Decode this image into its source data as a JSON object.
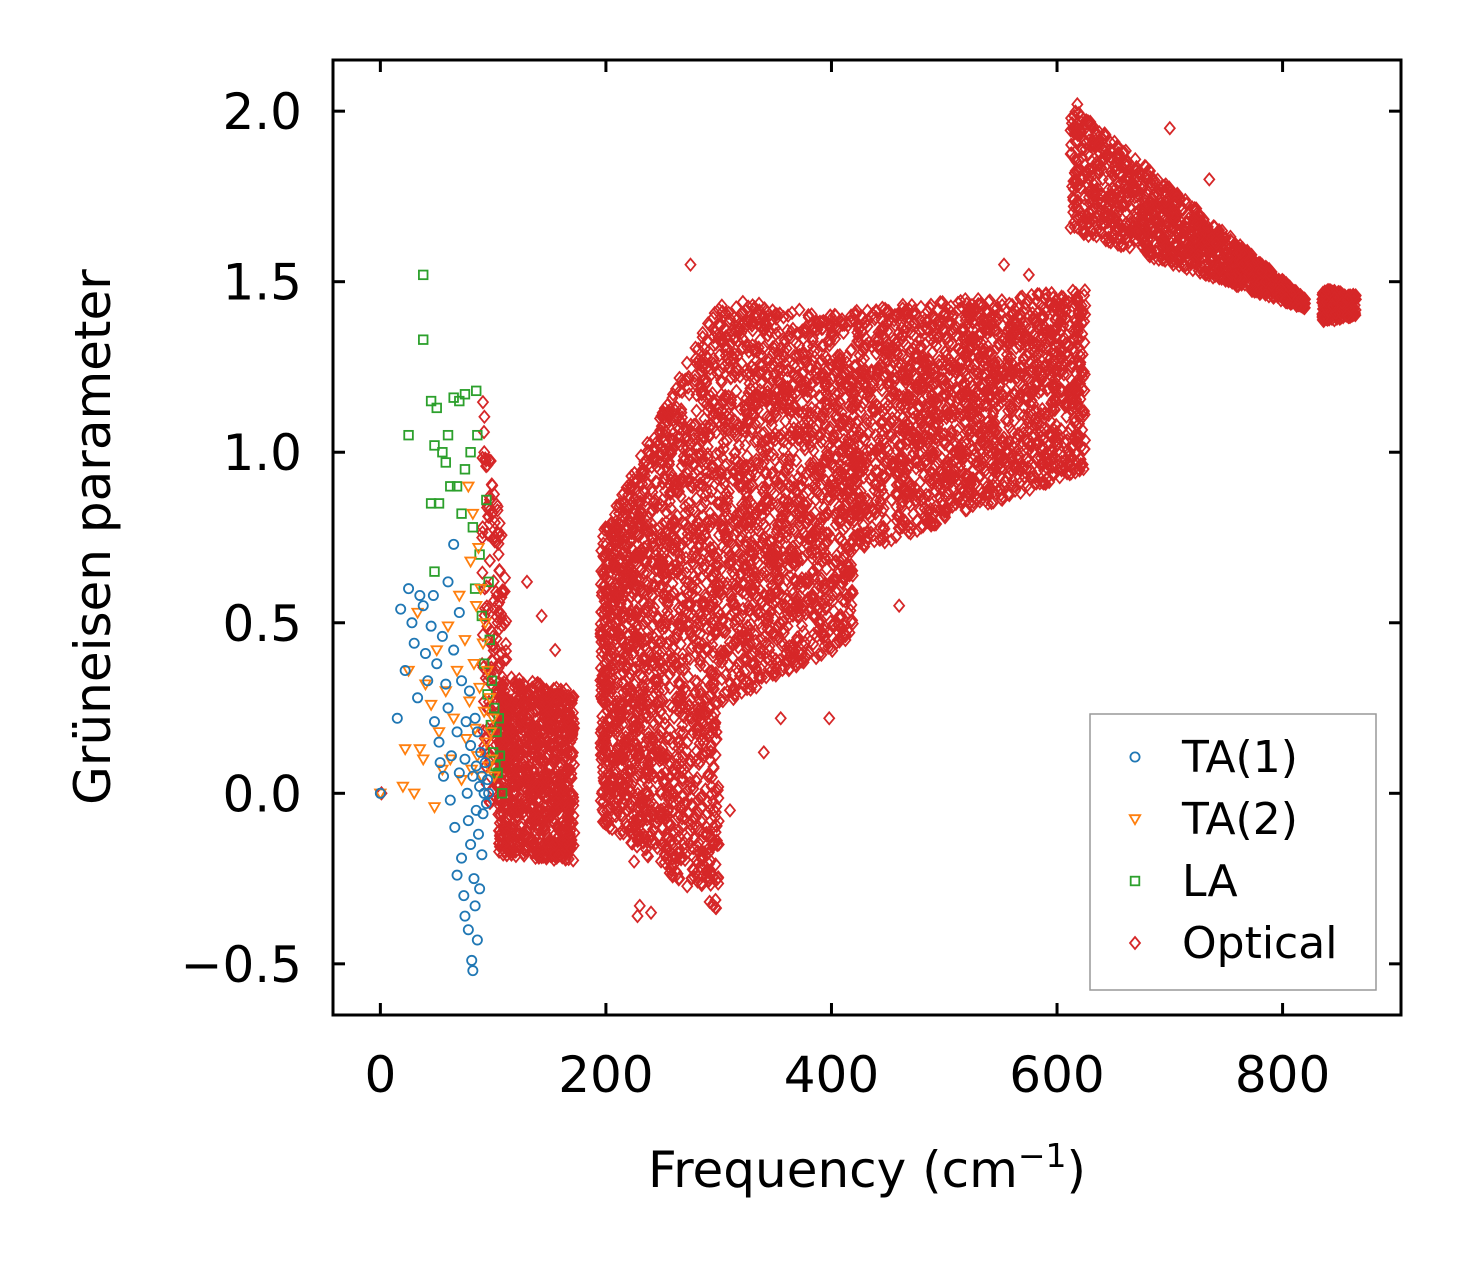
{
  "chart_data": {
    "type": "scatter",
    "title": "",
    "xlabel": "Frequency (cm",
    "xlabel_superscript": "−1",
    "xlabel_suffix": ")",
    "ylabel": "Grüneisen parameter",
    "xlim": [
      -42,
      905
    ],
    "ylim": [
      -0.65,
      2.15
    ],
    "xticks": [
      0,
      200,
      400,
      600,
      800
    ],
    "xtick_labels": [
      "0",
      "200",
      "400",
      "600",
      "800"
    ],
    "yticks": [
      -0.5,
      0.0,
      0.5,
      1.0,
      1.5,
      2.0
    ],
    "ytick_labels": [
      "−0.5",
      "0.0",
      "0.5",
      "1.0",
      "1.5",
      "2.0"
    ],
    "grid": false,
    "legend_position": "lower-right",
    "series": [
      {
        "name": "TA(1)",
        "marker": "circle",
        "color": "#1f77b4",
        "points": [
          [
            0,
            0.0
          ],
          [
            15,
            0.22
          ],
          [
            18,
            0.54
          ],
          [
            22,
            0.36
          ],
          [
            25,
            0.6
          ],
          [
            28,
            0.5
          ],
          [
            30,
            0.44
          ],
          [
            33,
            0.28
          ],
          [
            35,
            0.58
          ],
          [
            38,
            0.55
          ],
          [
            40,
            0.41
          ],
          [
            42,
            0.33
          ],
          [
            45,
            0.49
          ],
          [
            47,
            0.58
          ],
          [
            48,
            0.21
          ],
          [
            50,
            0.38
          ],
          [
            52,
            0.15
          ],
          [
            53,
            0.09
          ],
          [
            55,
            0.46
          ],
          [
            56,
            0.05
          ],
          [
            58,
            0.32
          ],
          [
            60,
            0.62
          ],
          [
            60,
            0.25
          ],
          [
            62,
            -0.02
          ],
          [
            63,
            0.11
          ],
          [
            65,
            0.73
          ],
          [
            65,
            0.42
          ],
          [
            66,
            -0.1
          ],
          [
            68,
            0.18
          ],
          [
            68,
            -0.24
          ],
          [
            70,
            0.06
          ],
          [
            70,
            0.53
          ],
          [
            72,
            -0.19
          ],
          [
            72,
            0.33
          ],
          [
            74,
            -0.3
          ],
          [
            75,
            0.1
          ],
          [
            75,
            -0.36
          ],
          [
            76,
            0.21
          ],
          [
            77,
            0.0
          ],
          [
            78,
            -0.08
          ],
          [
            78,
            -0.4
          ],
          [
            79,
            0.3
          ],
          [
            80,
            -0.15
          ],
          [
            80,
            0.14
          ],
          [
            81,
            -0.49
          ],
          [
            82,
            -0.52
          ],
          [
            82,
            0.05
          ],
          [
            83,
            -0.25
          ],
          [
            84,
            0.22
          ],
          [
            84,
            -0.33
          ],
          [
            85,
            -0.05
          ],
          [
            85,
            0.08
          ],
          [
            86,
            -0.43
          ],
          [
            86,
            0.18
          ],
          [
            87,
            -0.12
          ],
          [
            88,
            0.02
          ],
          [
            88,
            -0.28
          ],
          [
            89,
            0.12
          ],
          [
            90,
            -0.18
          ],
          [
            90,
            0.05
          ],
          [
            91,
            -0.06
          ],
          [
            92,
            0.0
          ],
          [
            93,
            0.09
          ],
          [
            94,
            -0.03
          ],
          [
            95,
            0.04
          ],
          [
            96,
            0.0
          ]
        ]
      },
      {
        "name": "TA(2)",
        "marker": "triangle-down",
        "color": "#ff7f0e",
        "points": [
          [
            0,
            0.0
          ],
          [
            20,
            0.02
          ],
          [
            22,
            0.13
          ],
          [
            25,
            0.36
          ],
          [
            30,
            0.0
          ],
          [
            33,
            0.53
          ],
          [
            35,
            0.13
          ],
          [
            38,
            0.1
          ],
          [
            40,
            0.32
          ],
          [
            45,
            0.26
          ],
          [
            48,
            -0.04
          ],
          [
            50,
            0.42
          ],
          [
            52,
            0.18
          ],
          [
            55,
            0.07
          ],
          [
            58,
            0.3
          ],
          [
            60,
            0.49
          ],
          [
            62,
            0.1
          ],
          [
            65,
            0.22
          ],
          [
            68,
            0.36
          ],
          [
            70,
            0.58
          ],
          [
            72,
            0.04
          ],
          [
            75,
            0.45
          ],
          [
            76,
            0.16
          ],
          [
            78,
            0.9
          ],
          [
            79,
            0.27
          ],
          [
            80,
            0.68
          ],
          [
            81,
            0.07
          ],
          [
            82,
            0.82
          ],
          [
            83,
            0.38
          ],
          [
            84,
            0.19
          ],
          [
            85,
            0.55
          ],
          [
            86,
            0.11
          ],
          [
            87,
            0.72
          ],
          [
            88,
            0.31
          ],
          [
            89,
            0.6
          ],
          [
            90,
            0.05
          ],
          [
            91,
            0.44
          ],
          [
            92,
            0.24
          ],
          [
            93,
            0.5
          ],
          [
            94,
            0.15
          ],
          [
            95,
            0.36
          ],
          [
            96,
            0.08
          ],
          [
            97,
            0.28
          ],
          [
            98,
            0.18
          ],
          [
            99,
            0.1
          ],
          [
            100,
            0.22
          ],
          [
            101,
            0.05
          ]
        ]
      },
      {
        "name": "LA",
        "marker": "square",
        "color": "#2ca02c",
        "points": [
          [
            38,
            1.52
          ],
          [
            38,
            1.33
          ],
          [
            25,
            1.05
          ],
          [
            45,
            1.15
          ],
          [
            50,
            1.13
          ],
          [
            48,
            1.02
          ],
          [
            55,
            1.0
          ],
          [
            60,
            1.05
          ],
          [
            65,
            1.16
          ],
          [
            70,
            1.15
          ],
          [
            75,
            1.17
          ],
          [
            85,
            1.18
          ],
          [
            45,
            0.85
          ],
          [
            52,
            0.85
          ],
          [
            58,
            0.97
          ],
          [
            62,
            0.9
          ],
          [
            48,
            0.65
          ],
          [
            68,
            0.9
          ],
          [
            72,
            0.82
          ],
          [
            75,
            0.95
          ],
          [
            80,
            1.0
          ],
          [
            82,
            0.78
          ],
          [
            84,
            0.6
          ],
          [
            86,
            1.05
          ],
          [
            88,
            0.7
          ],
          [
            90,
            0.52
          ],
          [
            92,
            0.38
          ],
          [
            94,
            0.86
          ],
          [
            95,
            0.29
          ],
          [
            96,
            0.62
          ],
          [
            97,
            0.45
          ],
          [
            98,
            0.2
          ],
          [
            99,
            0.33
          ],
          [
            100,
            0.12
          ],
          [
            101,
            0.25
          ],
          [
            102,
            0.08
          ],
          [
            103,
            0.18
          ],
          [
            104,
            0.06
          ],
          [
            105,
            0.22
          ],
          [
            108,
            0.0
          ],
          [
            106,
            0.11
          ]
        ]
      },
      {
        "name": "Optical",
        "marker": "diamond",
        "color": "#d62728",
        "clusters": [
          {
            "x": [
              90,
              112
            ],
            "y_low": [
              0.0,
              -0.1
            ],
            "y_high": [
              1.18,
              0.65
            ],
            "n": 180
          },
          {
            "x": [
              105,
              172
            ],
            "y_low": [
              -0.18,
              -0.2
            ],
            "y_high": [
              0.35,
              0.3
            ],
            "n": 900
          },
          {
            "x": [
              195,
              300
            ],
            "y_low": [
              -0.08,
              -0.35
            ],
            "y_high": [
              0.75,
              1.45
            ],
            "n": 1800
          },
          {
            "x": [
              300,
              420
            ],
            "y_low": [
              0.25,
              0.45
            ],
            "y_high": [
              1.45,
              1.4
            ],
            "n": 1500
          },
          {
            "x": [
              420,
              625
            ],
            "y_low": [
              0.7,
              0.95
            ],
            "y_high": [
              1.42,
              1.48
            ],
            "n": 1800
          },
          {
            "x": [
              612,
              820
            ],
            "y_low": [
              1.65,
              1.42
            ],
            "y_high": [
              2.02,
              1.45
            ],
            "n": 1200
          },
          {
            "x": [
              835,
              865
            ],
            "y_low": [
              1.38,
              1.4
            ],
            "y_high": [
              1.48,
              1.46
            ],
            "n": 250
          }
        ],
        "points": [
          [
            398,
            0.22
          ],
          [
            228,
            -0.36
          ],
          [
            230,
            -0.33
          ],
          [
            240,
            -0.35
          ],
          [
            262,
            -0.19
          ],
          [
            625,
            1.43
          ],
          [
            618,
            2.02
          ],
          [
            700,
            1.95
          ],
          [
            735,
            1.8
          ],
          [
            765,
            1.55
          ],
          [
            785,
            1.5
          ],
          [
            640,
            1.67
          ],
          [
            1,
            0.0
          ],
          [
            130,
            0.62
          ],
          [
            143,
            0.52
          ],
          [
            155,
            0.42
          ],
          [
            200,
            -0.09
          ],
          [
            275,
            1.55
          ],
          [
            553,
            1.55
          ],
          [
            575,
            1.52
          ],
          [
            470,
            1.35
          ],
          [
            320,
            1.35
          ],
          [
            255,
            0.95
          ],
          [
            355,
            0.22
          ],
          [
            460,
            0.55
          ],
          [
            395,
            0.6
          ],
          [
            300,
            -0.15
          ],
          [
            310,
            -0.05
          ],
          [
            340,
            0.12
          ],
          [
            225,
            -0.2
          ]
        ]
      }
    ]
  }
}
